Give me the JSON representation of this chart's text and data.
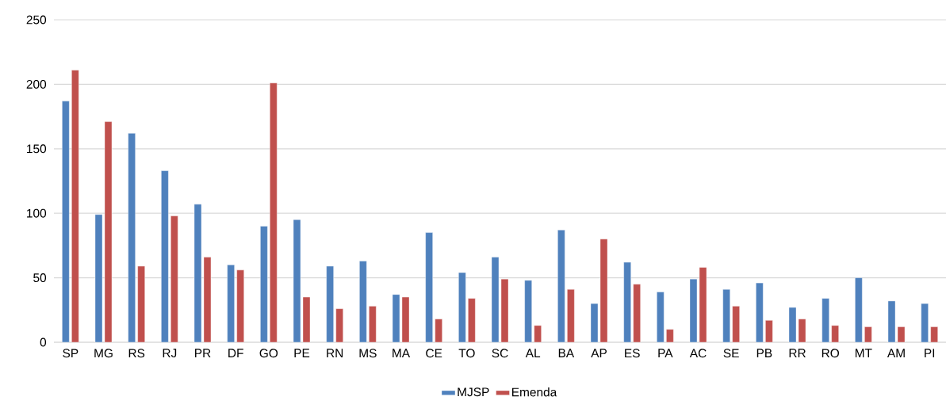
{
  "chart_data": {
    "type": "bar",
    "categories": [
      "SP",
      "MG",
      "RS",
      "RJ",
      "PR",
      "DF",
      "GO",
      "PE",
      "RN",
      "MS",
      "MA",
      "CE",
      "TO",
      "SC",
      "AL",
      "BA",
      "AP",
      "ES",
      "PA",
      "AC",
      "SE",
      "PB",
      "RR",
      "RO",
      "MT",
      "AM",
      "PI"
    ],
    "series": [
      {
        "name": "MJSP",
        "color": "#4f81bd",
        "values": [
          187,
          99,
          162,
          133,
          107,
          60,
          90,
          95,
          59,
          63,
          37,
          85,
          54,
          66,
          48,
          87,
          30,
          62,
          39,
          49,
          41,
          46,
          27,
          34,
          50,
          32,
          30
        ]
      },
      {
        "name": "Emenda",
        "color": "#c0504d",
        "values": [
          211,
          171,
          59,
          98,
          66,
          56,
          201,
          35,
          26,
          28,
          35,
          18,
          34,
          49,
          13,
          41,
          80,
          45,
          10,
          58,
          28,
          17,
          18,
          13,
          12,
          12,
          12
        ]
      }
    ],
    "ylim": [
      0,
      250
    ],
    "yticks": [
      0,
      50,
      100,
      150,
      200,
      250
    ],
    "grid": "y",
    "legend": "bottom"
  }
}
